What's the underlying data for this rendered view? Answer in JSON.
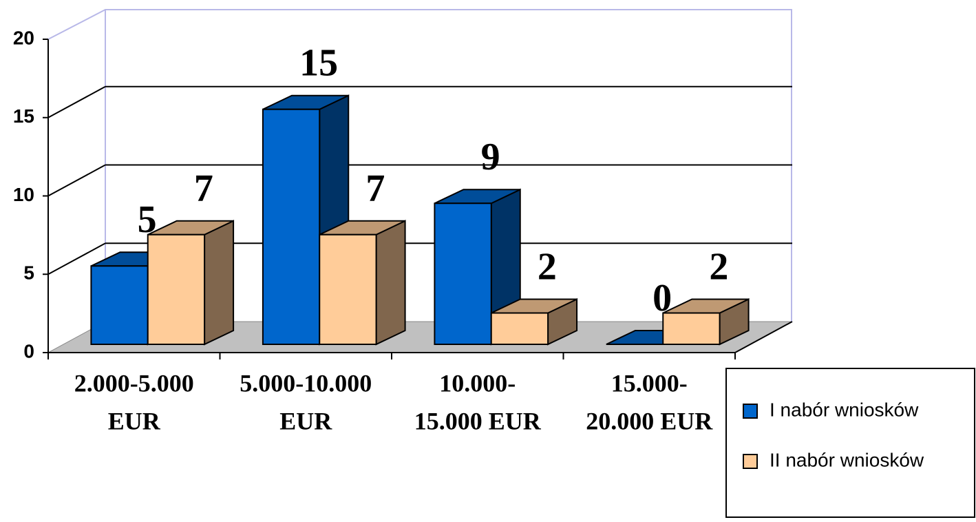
{
  "chart_data": {
    "type": "bar3d",
    "categories": [
      [
        "2.000-5.000",
        "EUR"
      ],
      [
        "5.000-10.000",
        "EUR"
      ],
      [
        "10.000-",
        "15.000 EUR"
      ],
      [
        "15.000-",
        "20.000 EUR"
      ]
    ],
    "series": [
      {
        "name": "I nabór wniosków",
        "color": "#0066cc",
        "values": [
          5,
          15,
          9,
          0
        ]
      },
      {
        "name": "II nabór wniosków",
        "color": "#ffcc99",
        "values": [
          7,
          7,
          2,
          2
        ]
      }
    ],
    "ylim": [
      0,
      20
    ],
    "yticks": [
      0,
      5,
      10,
      15,
      20
    ],
    "grid": true
  }
}
